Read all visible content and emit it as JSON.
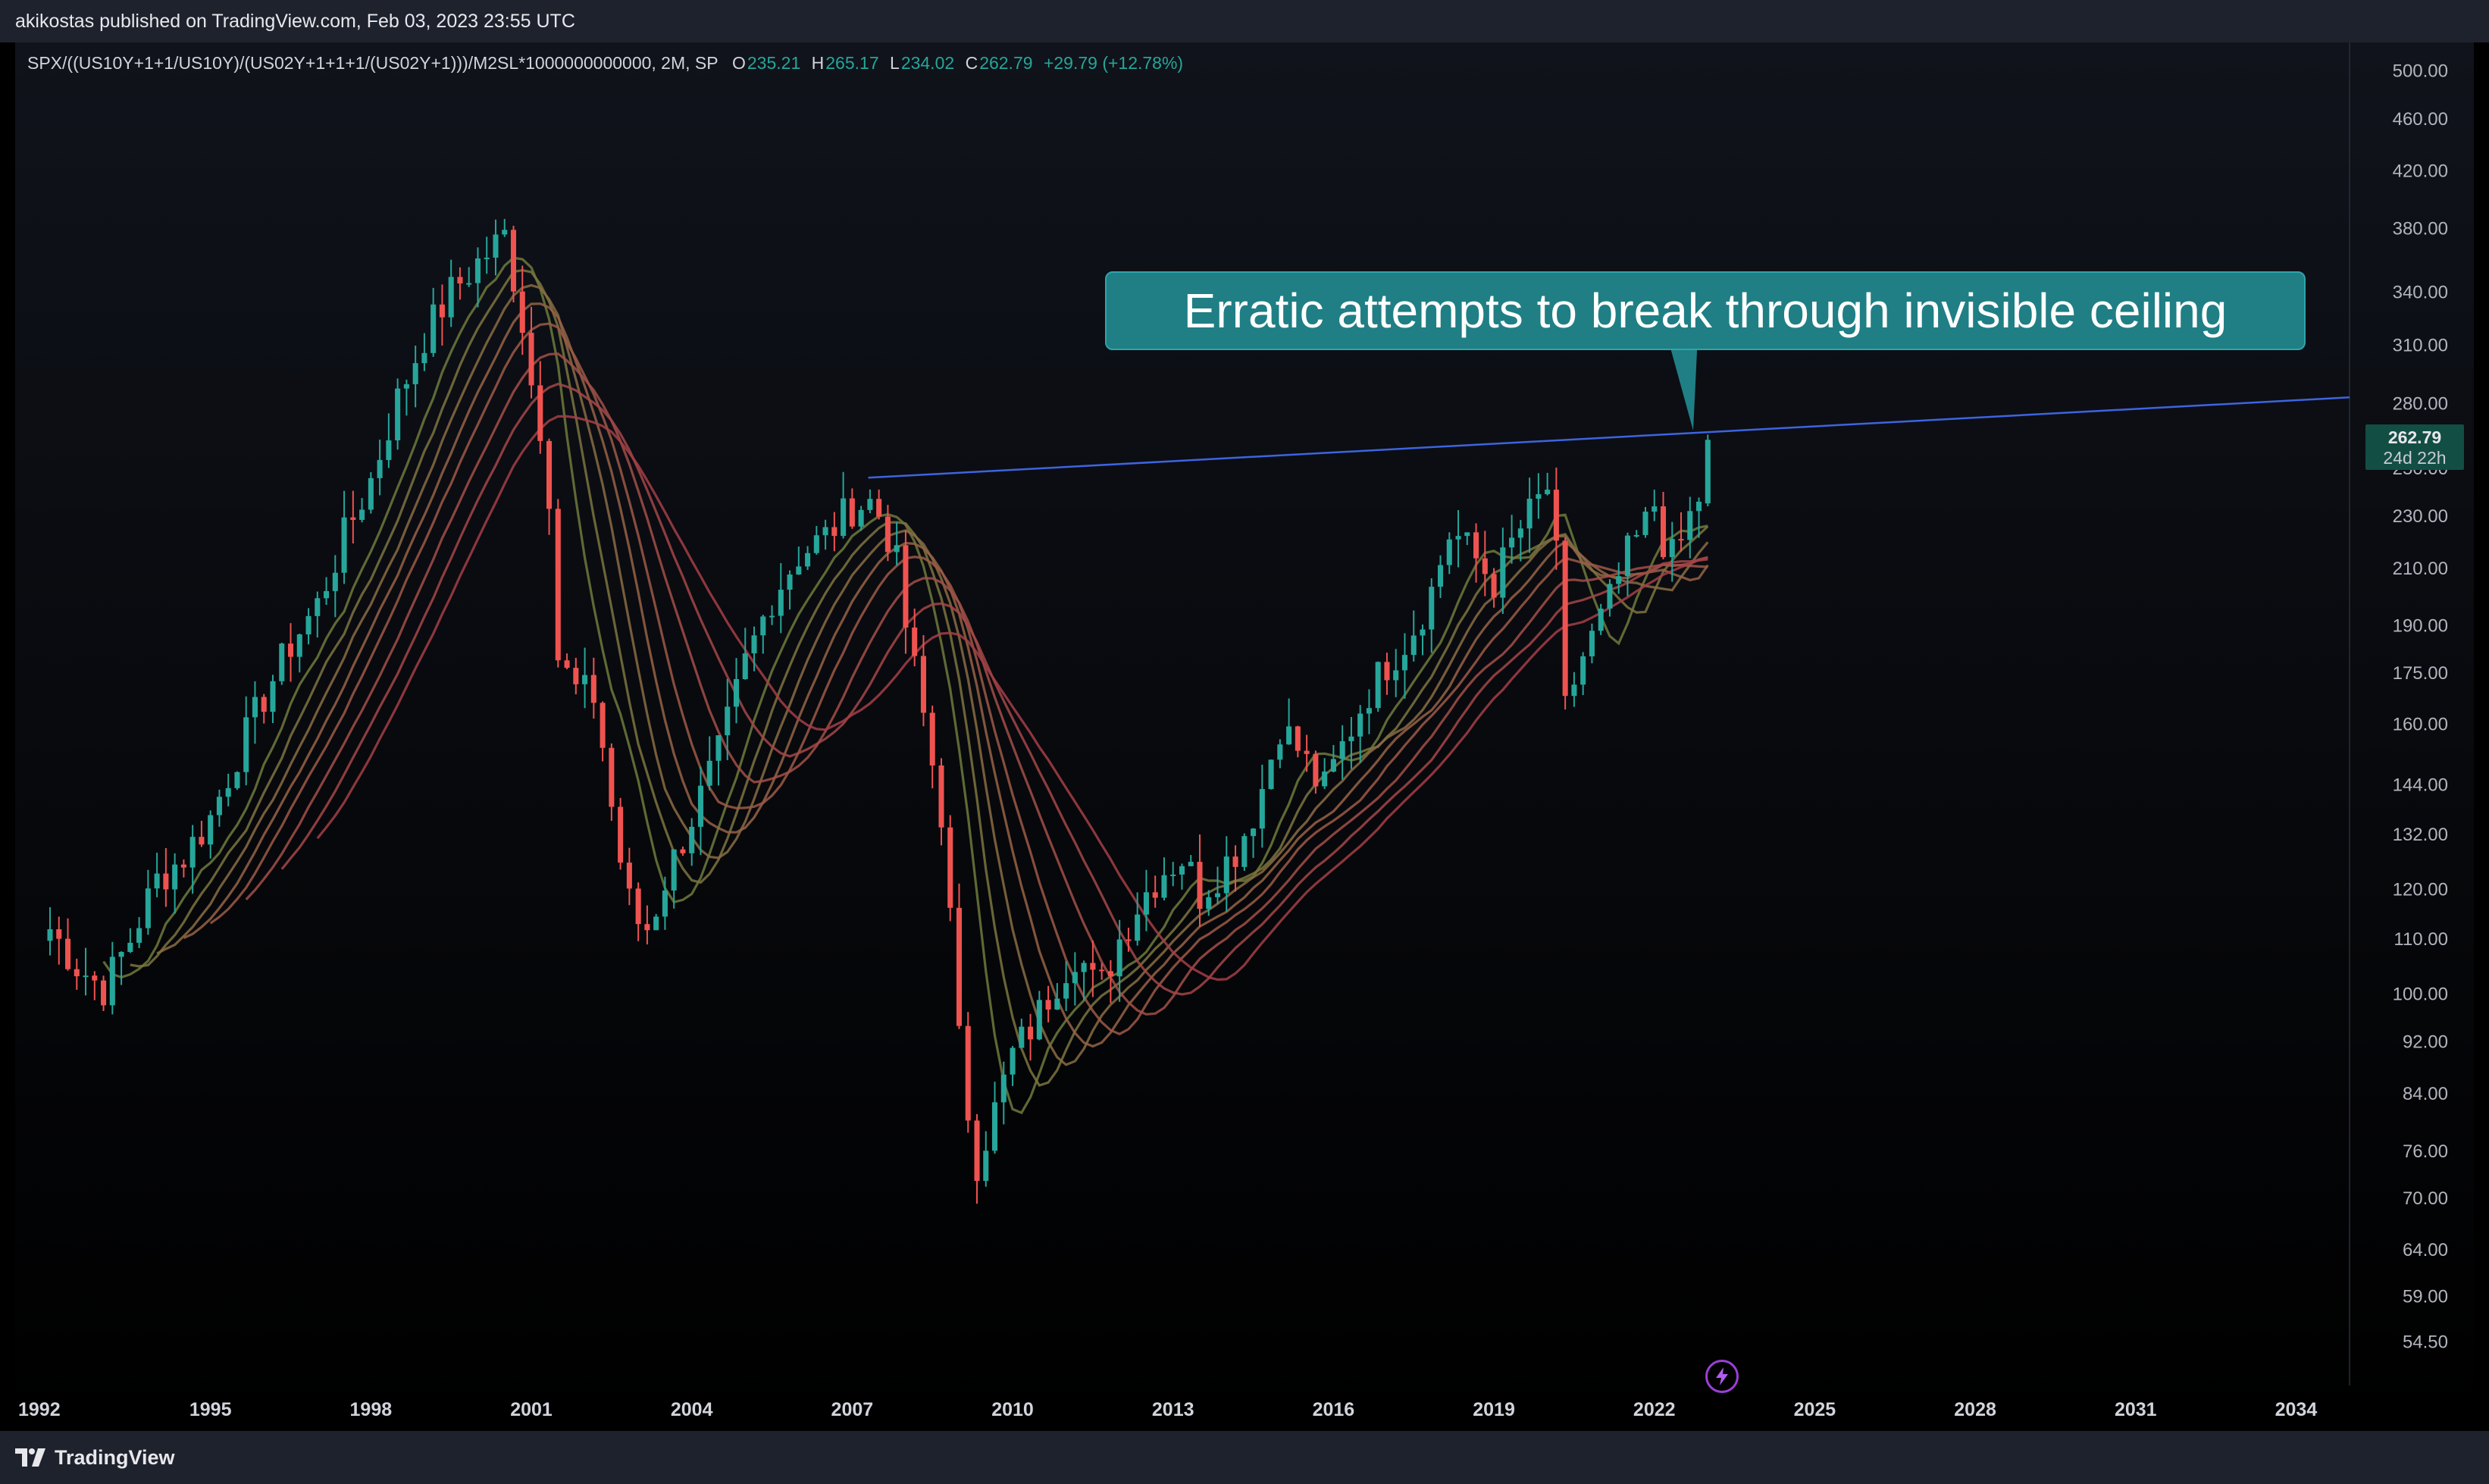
{
  "header": {
    "published_text": "akikostas published on TradingView.com, Feb 03, 2023 23:55 UTC"
  },
  "footer": {
    "brand": "TradingView"
  },
  "legend": {
    "symbol": "SPX/((US10Y+1+1/US10Y)/(US02Y+1+1+1/(US02Y+1)))/M2SL*1000000000000, 2M, SP",
    "open_label": "O",
    "open": "235.21",
    "high_label": "H",
    "high": "265.17",
    "low_label": "L",
    "low": "234.02",
    "close_label": "C",
    "close": "262.79",
    "change": "+29.79 (+12.78%)"
  },
  "price_tag": {
    "price": "262.79",
    "countdown": "24d 22h"
  },
  "annotation": {
    "text": "Erratic attempts to break through invisible ceiling"
  },
  "colors": {
    "background_top": "#0e1118",
    "background_bottom": "#000000",
    "up": "#26a69a",
    "down": "#ef5350",
    "trendline": "#3d64e0",
    "callout": "#1f7f85",
    "price_tag": "#134e45"
  },
  "icons": {
    "footer_logo": "tradingview-logo-icon",
    "bottom_marker": "lightning-icon"
  },
  "chart_data": {
    "type": "candlestick",
    "scale": "log",
    "timeframe": "2M",
    "ylim": [
      52,
      520
    ],
    "xlim": [
      1992.0,
      2035.0
    ],
    "y_ticks": [
      "500.00",
      "460.00",
      "420.00",
      "380.00",
      "340.00",
      "310.00",
      "280.00",
      "250.00",
      "230.00",
      "210.00",
      "190.00",
      "175.00",
      "160.00",
      "144.00",
      "132.00",
      "120.00",
      "110.00",
      "100.00",
      "92.00",
      "84.00",
      "76.00",
      "70.00",
      "64.00",
      "59.00",
      "54.50"
    ],
    "x_ticks": [
      "1992",
      "1995",
      "1998",
      "2001",
      "2004",
      "2007",
      "2010",
      "2013",
      "2016",
      "2019",
      "2022",
      "2025",
      "2028",
      "2031",
      "2034"
    ],
    "closes": [
      {
        "t": 1992.0,
        "v": 112
      },
      {
        "t": 1992.5,
        "v": 105
      },
      {
        "t": 1993.0,
        "v": 101
      },
      {
        "t": 1993.5,
        "v": 110
      },
      {
        "t": 1994.0,
        "v": 122
      },
      {
        "t": 1994.5,
        "v": 127
      },
      {
        "t": 1995.0,
        "v": 136
      },
      {
        "t": 1995.5,
        "v": 152
      },
      {
        "t": 1996.0,
        "v": 168
      },
      {
        "t": 1996.5,
        "v": 184
      },
      {
        "t": 1997.0,
        "v": 197
      },
      {
        "t": 1997.5,
        "v": 222
      },
      {
        "t": 1998.0,
        "v": 245
      },
      {
        "t": 1998.5,
        "v": 282
      },
      {
        "t": 1999.0,
        "v": 315
      },
      {
        "t": 1999.5,
        "v": 340
      },
      {
        "t": 2000.0,
        "v": 358
      },
      {
        "t": 2000.5,
        "v": 375
      },
      {
        "t": 2000.8,
        "v": 330
      },
      {
        "t": 2001.0,
        "v": 290
      },
      {
        "t": 2001.3,
        "v": 255
      },
      {
        "t": 2001.5,
        "v": 180
      },
      {
        "t": 2001.8,
        "v": 170
      },
      {
        "t": 2002.2,
        "v": 168
      },
      {
        "t": 2002.6,
        "v": 130
      },
      {
        "t": 2002.9,
        "v": 114
      },
      {
        "t": 2003.2,
        "v": 112
      },
      {
        "t": 2003.5,
        "v": 122
      },
      {
        "t": 2004.0,
        "v": 136
      },
      {
        "t": 2004.5,
        "v": 152
      },
      {
        "t": 2005.0,
        "v": 178
      },
      {
        "t": 2005.5,
        "v": 200
      },
      {
        "t": 2006.0,
        "v": 215
      },
      {
        "t": 2006.5,
        "v": 222
      },
      {
        "t": 2007.0,
        "v": 234
      },
      {
        "t": 2007.4,
        "v": 236
      },
      {
        "t": 2007.8,
        "v": 216
      },
      {
        "t": 2008.0,
        "v": 190
      },
      {
        "t": 2008.3,
        "v": 165
      },
      {
        "t": 2008.7,
        "v": 135
      },
      {
        "t": 2009.0,
        "v": 92
      },
      {
        "t": 2009.3,
        "v": 74
      },
      {
        "t": 2009.6,
        "v": 80
      },
      {
        "t": 2010.0,
        "v": 90
      },
      {
        "t": 2010.4,
        "v": 95
      },
      {
        "t": 2010.8,
        "v": 102
      },
      {
        "t": 2011.2,
        "v": 108
      },
      {
        "t": 2011.6,
        "v": 100
      },
      {
        "t": 2012.0,
        "v": 110
      },
      {
        "t": 2012.4,
        "v": 118
      },
      {
        "t": 2012.8,
        "v": 124
      },
      {
        "t": 2013.2,
        "v": 127
      },
      {
        "t": 2013.5,
        "v": 119
      },
      {
        "t": 2013.8,
        "v": 123
      },
      {
        "t": 2014.2,
        "v": 129
      },
      {
        "t": 2014.6,
        "v": 140
      },
      {
        "t": 2015.0,
        "v": 160
      },
      {
        "t": 2015.4,
        "v": 152
      },
      {
        "t": 2015.8,
        "v": 142
      },
      {
        "t": 2016.2,
        "v": 155
      },
      {
        "t": 2016.6,
        "v": 168
      },
      {
        "t": 2017.0,
        "v": 178
      },
      {
        "t": 2017.4,
        "v": 186
      },
      {
        "t": 2017.8,
        "v": 200
      },
      {
        "t": 2018.2,
        "v": 225
      },
      {
        "t": 2018.6,
        "v": 215
      },
      {
        "t": 2019.0,
        "v": 205
      },
      {
        "t": 2019.4,
        "v": 222
      },
      {
        "t": 2019.8,
        "v": 235
      },
      {
        "t": 2020.1,
        "v": 245
      },
      {
        "t": 2020.3,
        "v": 162
      },
      {
        "t": 2020.6,
        "v": 178
      },
      {
        "t": 2020.9,
        "v": 188
      },
      {
        "t": 2021.2,
        "v": 200
      },
      {
        "t": 2021.5,
        "v": 215
      },
      {
        "t": 2021.8,
        "v": 225
      },
      {
        "t": 2022.0,
        "v": 235
      },
      {
        "t": 2022.2,
        "v": 218
      },
      {
        "t": 2022.4,
        "v": 212
      },
      {
        "t": 2022.6,
        "v": 228
      },
      {
        "t": 2022.8,
        "v": 233
      },
      {
        "t": 2023.0,
        "v": 262.79
      }
    ],
    "trendline": [
      {
        "t": 2007.3,
        "v": 246
      },
      {
        "t": 2035.0,
        "v": 283
      }
    ],
    "ribbon_lengths": [
      6,
      9,
      12,
      15,
      18,
      22,
      26,
      30
    ]
  }
}
